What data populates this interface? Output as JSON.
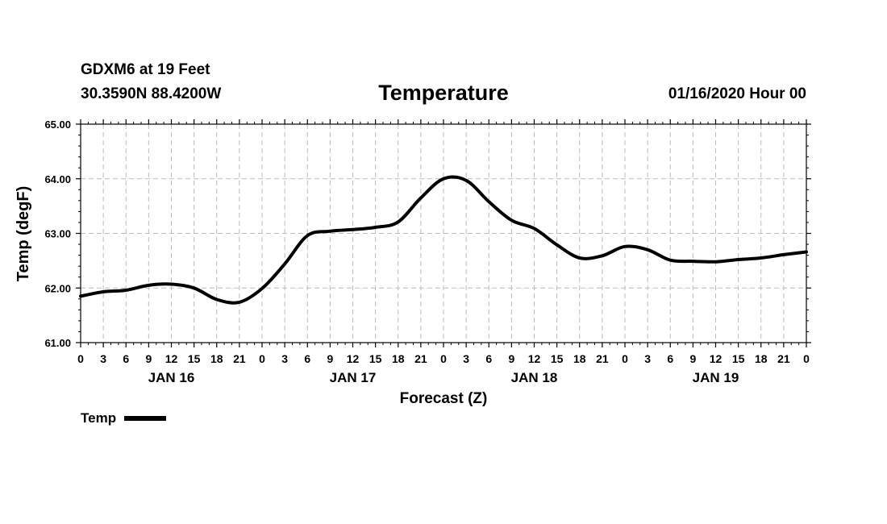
{
  "chart_data": {
    "type": "line",
    "station": "GDXM6 at 19 Feet",
    "location": "30.3590N 88.4200W",
    "title": "Temperature",
    "run_time": "01/16/2020 Hour 00",
    "ylabel": "Temp (degF)",
    "xlabel": "Forecast (Z)",
    "ylim": [
      61.0,
      65.0
    ],
    "y_ticks": [
      "61.00",
      "62.00",
      "63.00",
      "64.00",
      "65.00"
    ],
    "x_range_hours": [
      0,
      96
    ],
    "x_tick_labels": [
      "0",
      "3",
      "6",
      "9",
      "12",
      "15",
      "18",
      "21",
      "0",
      "3",
      "6",
      "9",
      "12",
      "15",
      "18",
      "21",
      "0",
      "3",
      "6",
      "9",
      "12",
      "15",
      "18",
      "21",
      "0",
      "3",
      "6",
      "9",
      "12",
      "15",
      "18",
      "21",
      "0"
    ],
    "day_labels": [
      {
        "label": "JAN 16",
        "hour": 12
      },
      {
        "label": "JAN 17",
        "hour": 36
      },
      {
        "label": "JAN 18",
        "hour": 60
      },
      {
        "label": "JAN 19",
        "hour": 84
      }
    ],
    "grid": true,
    "legend": {
      "label": "Temp",
      "placement": "bottom-left"
    },
    "series": [
      {
        "name": "Temp",
        "color": "#000000",
        "x": [
          0,
          3,
          6,
          9,
          12,
          15,
          18,
          21,
          24,
          27,
          30,
          33,
          36,
          39,
          42,
          45,
          48,
          51,
          54,
          57,
          60,
          63,
          66,
          69,
          72,
          75,
          78,
          81,
          84,
          87,
          90,
          93,
          96
        ],
        "values": [
          61.85,
          61.93,
          61.96,
          62.05,
          62.07,
          62.0,
          61.79,
          61.74,
          61.99,
          62.44,
          62.96,
          63.04,
          63.07,
          63.11,
          63.21,
          63.65,
          64.0,
          63.97,
          63.58,
          63.24,
          63.09,
          62.79,
          62.55,
          62.59,
          62.76,
          62.7,
          62.51,
          62.49,
          62.48,
          62.52,
          62.55,
          62.61,
          62.66
        ]
      }
    ]
  }
}
